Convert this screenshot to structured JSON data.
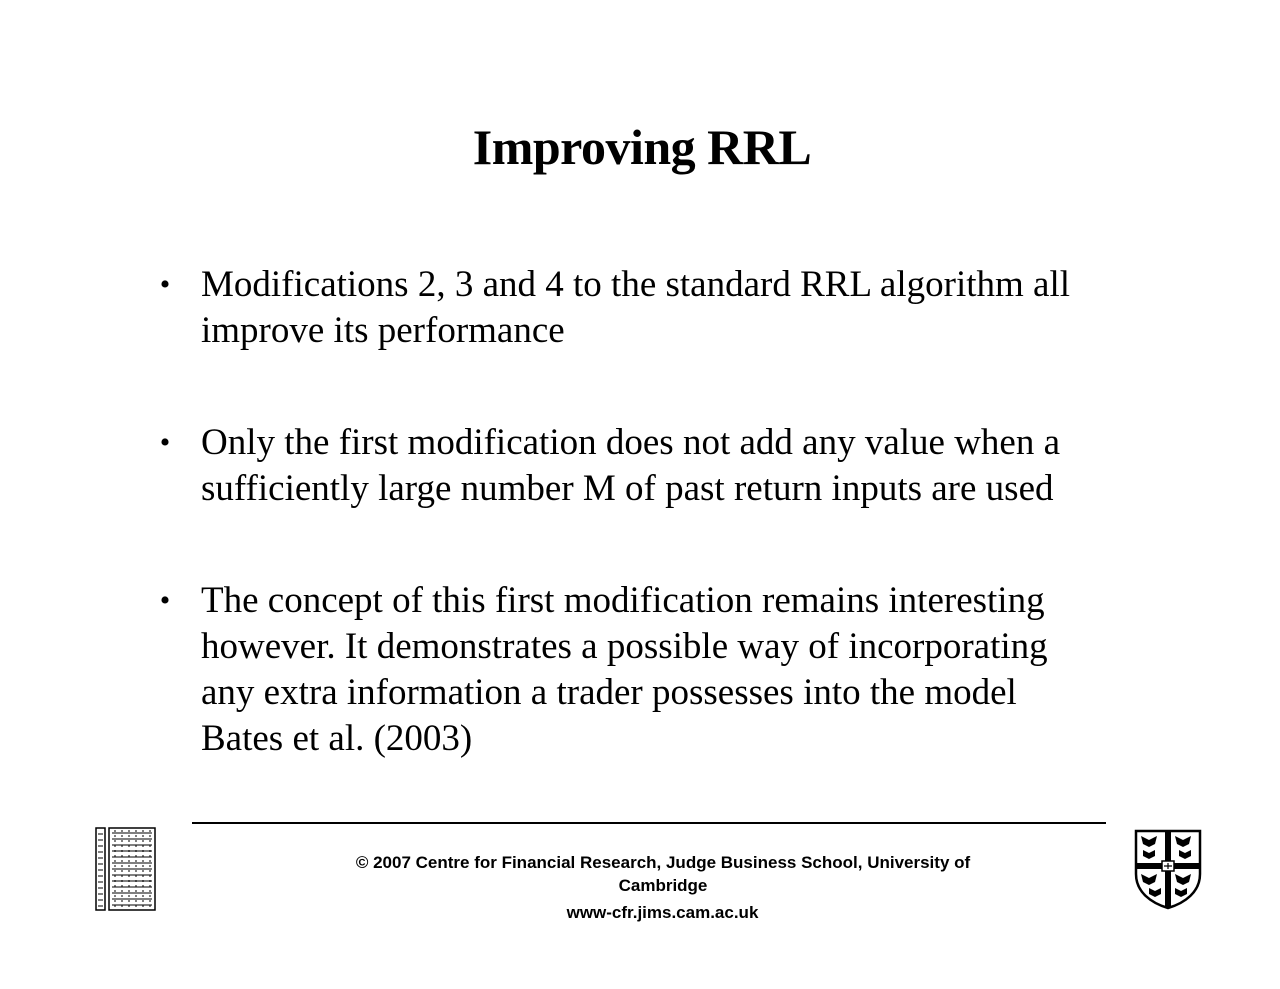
{
  "slide": {
    "title": "Improving RRL",
    "bullet_symbol": "•",
    "bullets": [
      {
        "lines": [
          "Modifications 2, 3 and 4 to the standard RRL algorithm all",
          "improve its performance"
        ]
      },
      {
        "lines": [
          "Only the first modification does not add any value when a",
          "sufficiently large number M of past return inputs are used"
        ]
      },
      {
        "lines": [
          "The concept of this first modification remains interesting",
          "however. It demonstrates a possible way of incorporating",
          "any extra information a trader possesses into the model",
          "Bates et al. (2003)"
        ]
      }
    ]
  },
  "footer": {
    "copyright_line1": "© 2007 Centre for Financial Research,  Judge Business School,  University of",
    "copyright_line2": "Cambridge",
    "url": "www-cfr.jims.cam.ac.uk",
    "left_logo": "cfr-logo-icon",
    "right_logo": "university-of-cambridge-crest-icon"
  }
}
